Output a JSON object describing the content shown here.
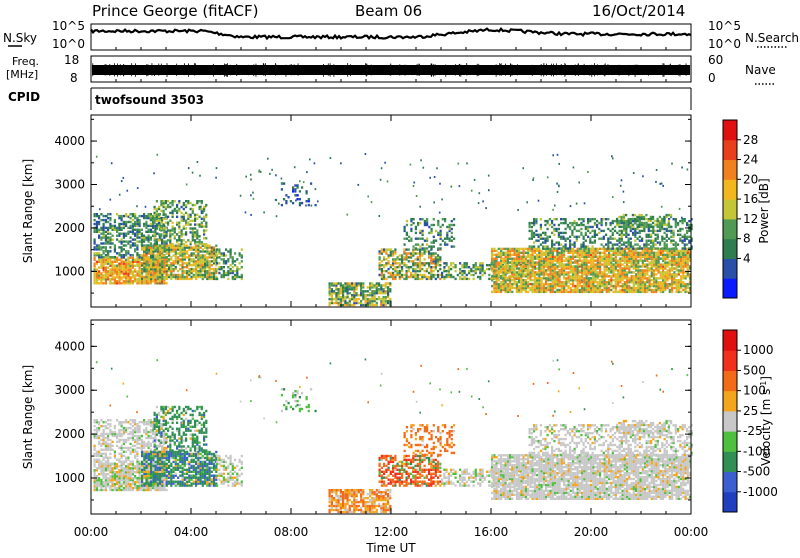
{
  "header": {
    "station": "Prince George (fitACF)",
    "beam": "Beam 06",
    "date": "16/Oct/2014"
  },
  "noise_panel": {
    "left_label": "N.Sky",
    "right_label": "N.Search",
    "left_ticks": [
      "10^5",
      "10^0"
    ],
    "right_ticks": [
      "10^5",
      "10^0"
    ]
  },
  "freq_panel": {
    "left_label_1": "Freq.",
    "left_label_2": "[MHz]",
    "left_ticks": [
      "18",
      "8"
    ],
    "right_label": "Nave",
    "right_ticks": [
      "60",
      "0"
    ]
  },
  "cpid_panel": {
    "label": "CPID",
    "value": "twofsound 3503"
  },
  "chart_data": [
    {
      "type": "heatmap",
      "title": "",
      "xlabel": "",
      "ylabel": "Slant Range [km]",
      "xlim": [
        "00:00",
        "24:00"
      ],
      "ylim": [
        180,
        4600
      ],
      "y_ticks": [
        "4000",
        "3000",
        "2000",
        "1000"
      ],
      "colorbar": {
        "label": "Power [dB]",
        "range": [
          0,
          32
        ],
        "ticks": [
          "28",
          "24",
          "20",
          "16",
          "12",
          "8",
          "4"
        ],
        "colors": [
          "#0a1cff",
          "#2a4fa8",
          "#2e7d4f",
          "#4f9a54",
          "#c3c637",
          "#f2b61e",
          "#f1811e",
          "#e8401c",
          "#e01010"
        ]
      }
    },
    {
      "type": "heatmap",
      "title": "",
      "xlabel": "Time UT",
      "ylabel": "Slant Range [km]",
      "xlim": [
        "00:00",
        "24:00"
      ],
      "ylim": [
        180,
        4600
      ],
      "y_ticks": [
        "4000",
        "3000",
        "2000",
        "1000"
      ],
      "x_ticks": [
        "00:00",
        "04:00",
        "08:00",
        "12:00",
        "16:00",
        "20:00",
        "00:00"
      ],
      "colorbar": {
        "label": "Velocity [m s^-1]",
        "ticks": [
          "1000",
          "500",
          "100",
          "25",
          "-25",
          "-100",
          "-500",
          "-1000"
        ],
        "colors": [
          "#1f3fbf",
          "#3a5fd0",
          "#2f8f55",
          "#4fbf3f",
          "#c8c8c8",
          "#f3a51c",
          "#f36a18",
          "#f0301a",
          "#e01010"
        ]
      }
    }
  ]
}
